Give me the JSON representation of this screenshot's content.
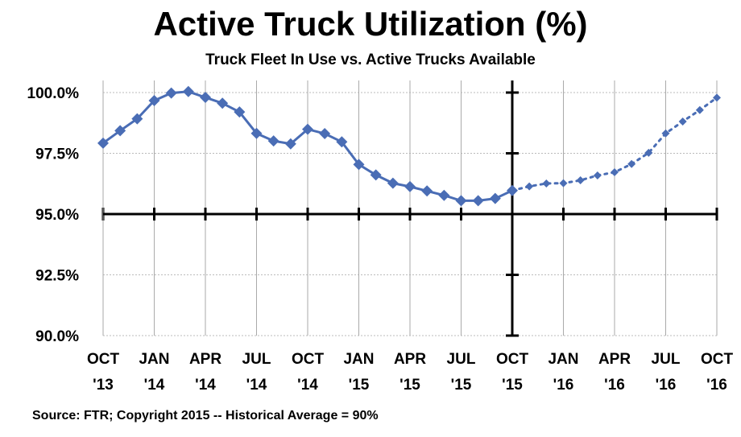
{
  "chart_data": {
    "type": "line",
    "title": "Active Truck Utilization  (%)",
    "subtitle": "Truck Fleet In Use vs. Active Trucks Available",
    "source": "Source: FTR; Copyright 2015 -- Historical Average = 90%",
    "xlabel": "",
    "ylabel": "",
    "ylim": [
      90,
      100
    ],
    "y_ticks": [
      "100.0%",
      "97.5%",
      "95.0%",
      "92.5%",
      "90.0%"
    ],
    "y_tick_values": [
      100,
      97.5,
      95,
      92.5,
      90
    ],
    "x_ticks": [
      [
        "OCT",
        "'13"
      ],
      [
        "JAN",
        "'14"
      ],
      [
        "APR",
        "'14"
      ],
      [
        "JUL",
        "'14"
      ],
      [
        "OCT",
        "'14"
      ],
      [
        "JAN",
        "'15"
      ],
      [
        "APR",
        "'15"
      ],
      [
        "JUL",
        "'15"
      ],
      [
        "OCT",
        "'15"
      ],
      [
        "JAN",
        "'16"
      ],
      [
        "APR",
        "'16"
      ],
      [
        "JUL",
        "'16"
      ],
      [
        "OCT",
        "'16"
      ]
    ],
    "x_range_months": [
      "Oct 2013",
      "Oct 2016"
    ],
    "grid": true,
    "color": "#4A6DB5",
    "series": [
      {
        "style": "solid",
        "x": [
          "Oct 2013",
          "Nov 2013",
          "Dec 2013",
          "Jan 2014",
          "Feb 2014",
          "Mar 2014",
          "Apr 2014",
          "May 2014",
          "Jun 2014",
          "Jul 2014",
          "Aug 2014",
          "Sep 2014",
          "Oct 2014",
          "Nov 2014",
          "Dec 2014",
          "Jan 2015",
          "Feb 2015",
          "Mar 2015",
          "Apr 2015",
          "May 2015",
          "Jun 2015",
          "Jul 2015",
          "Aug 2015",
          "Sep 2015",
          "Oct 2015"
        ],
        "values": [
          97.92,
          98.43,
          98.92,
          99.67,
          99.98,
          100.04,
          99.8,
          99.56,
          99.2,
          98.32,
          98.01,
          97.89,
          98.49,
          98.31,
          97.97,
          97.04,
          96.61,
          96.27,
          96.13,
          95.95,
          95.77,
          95.55,
          95.55,
          95.64,
          95.97
        ]
      },
      {
        "style": "dotted",
        "x": [
          "Oct 2015",
          "Nov 2015",
          "Dec 2015",
          "Jan 2016",
          "Feb 2016",
          "Mar 2016",
          "Apr 2016",
          "May 2016",
          "Jun 2016",
          "Jul 2016",
          "Aug 2016",
          "Sep 2016",
          "Oct 2016"
        ],
        "values": [
          95.97,
          96.14,
          96.26,
          96.27,
          96.39,
          96.59,
          96.72,
          97.06,
          97.52,
          98.32,
          98.81,
          99.28,
          99.79
        ]
      }
    ]
  }
}
